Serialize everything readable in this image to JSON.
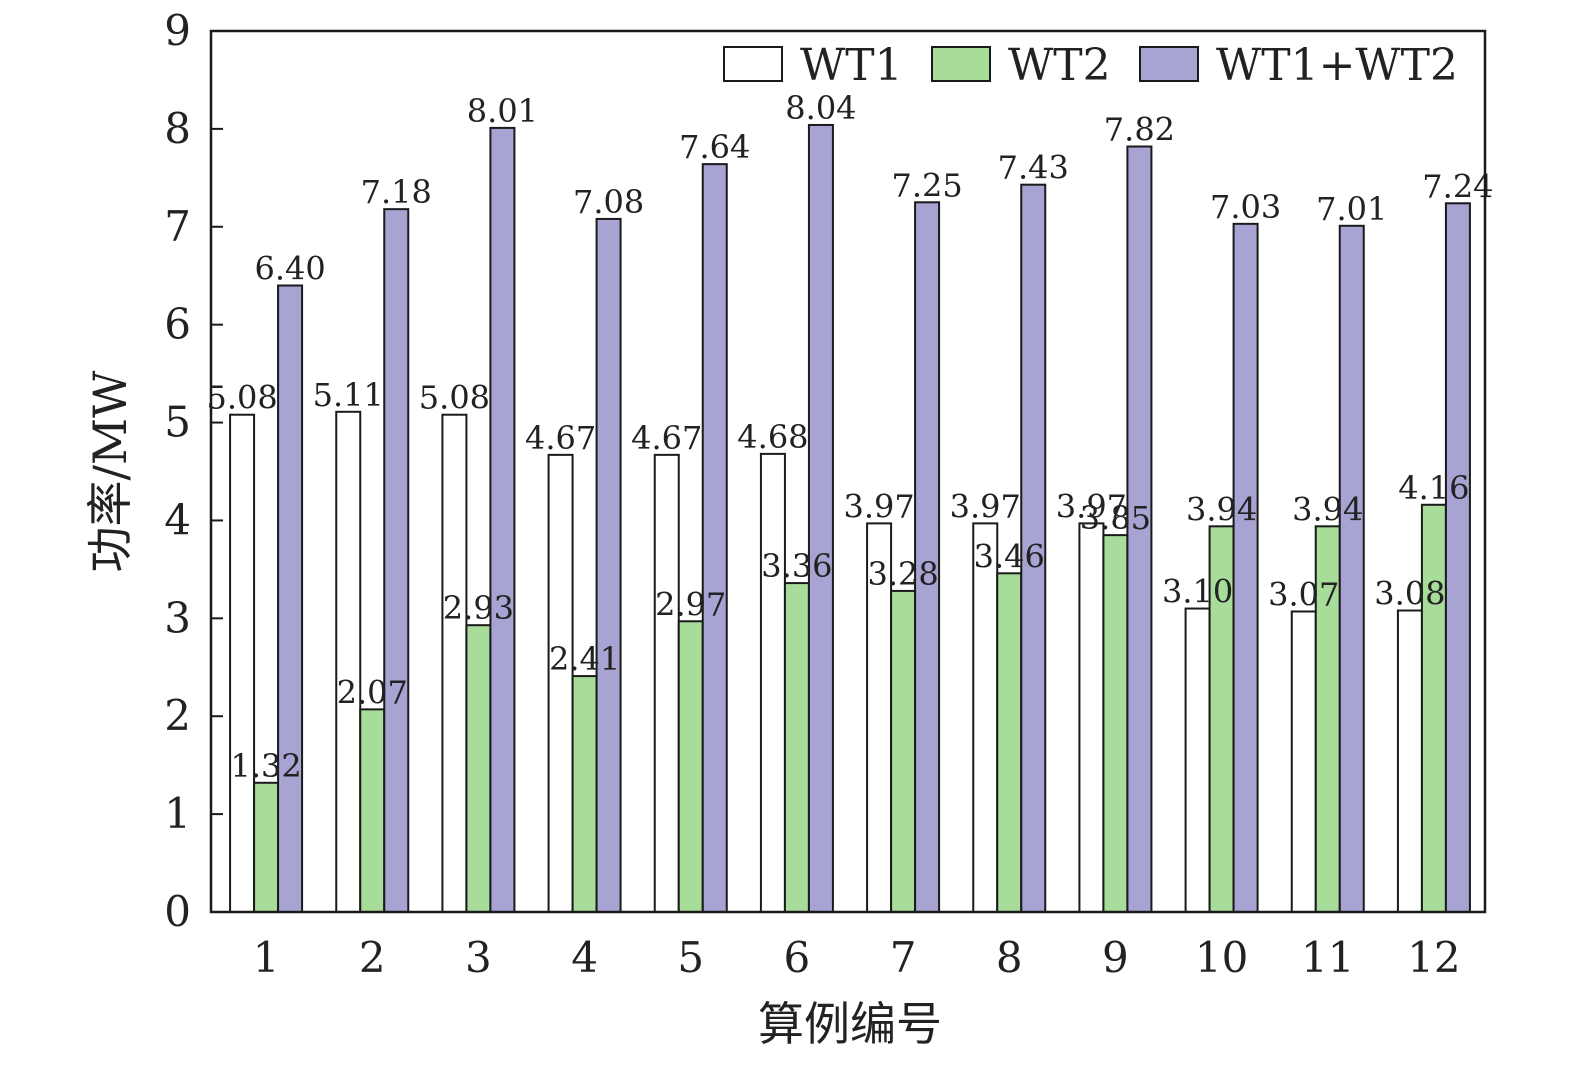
{
  "chart_data": {
    "type": "bar",
    "title": "",
    "xlabel": "算例编号",
    "ylabel": "功率/MW",
    "ylim": [
      0,
      9
    ],
    "yticks": [
      "0",
      "1",
      "2",
      "3",
      "4",
      "5",
      "6",
      "7",
      "8",
      "9"
    ],
    "categories": [
      "1",
      "2",
      "3",
      "4",
      "5",
      "6",
      "7",
      "8",
      "9",
      "10",
      "11",
      "12"
    ],
    "legend_position": "top-right",
    "grid": false,
    "series": [
      {
        "name": "WT1",
        "color": "#ffffff",
        "values": [
          5.08,
          5.11,
          5.08,
          4.67,
          4.67,
          4.68,
          3.97,
          3.97,
          3.97,
          3.1,
          3.07,
          3.08
        ],
        "labels": [
          "5.08",
          "5.11",
          "5.08",
          "4.67",
          "4.67",
          "4.68",
          "3.97",
          "3.97",
          "3.97",
          "3.10",
          "3.07",
          "3.08"
        ]
      },
      {
        "name": "WT2",
        "color": "#a8dc9a",
        "values": [
          1.32,
          2.07,
          2.93,
          2.41,
          2.97,
          3.36,
          3.28,
          3.46,
          3.85,
          3.94,
          3.94,
          4.16
        ],
        "labels": [
          "1.32",
          "2.07",
          "2.93",
          "2.41",
          "2.97",
          "3.36",
          "3.28",
          "3.46",
          "3.85",
          "3.94",
          "3.94",
          "4.16"
        ]
      },
      {
        "name": "WT1+WT2",
        "color": "#a7a3d2",
        "values": [
          6.4,
          7.18,
          8.01,
          7.08,
          7.64,
          8.04,
          7.25,
          7.43,
          7.82,
          7.03,
          7.01,
          7.24
        ],
        "labels": [
          "6.40",
          "7.18",
          "8.01",
          "7.08",
          "7.64",
          "8.04",
          "7.25",
          "7.43",
          "7.82",
          "7.03",
          "7.01",
          "7.24"
        ]
      }
    ]
  }
}
